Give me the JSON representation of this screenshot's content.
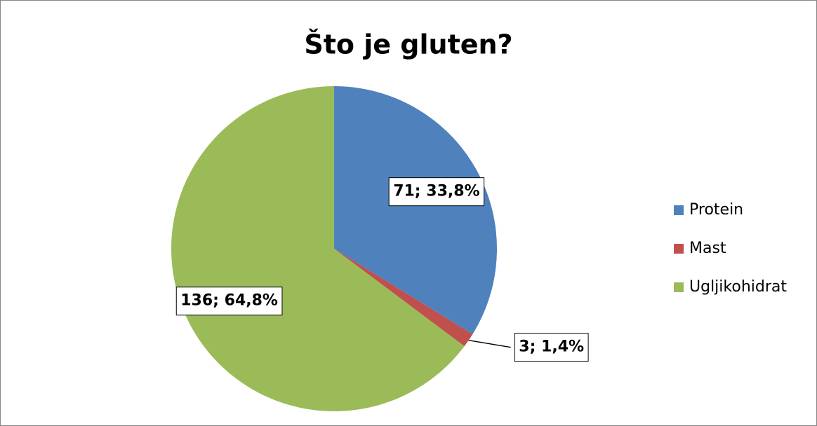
{
  "chart_data": {
    "type": "pie",
    "title": "Što je gluten?",
    "categories": [
      "Protein",
      "Mast",
      "Ugljikohidrat"
    ],
    "values": [
      71,
      3,
      136
    ],
    "value_labels": [
      "71; 33,8%",
      "3; 1,4%",
      "136; 64,8%"
    ],
    "colors": [
      "#4f81bd",
      "#c0504d",
      "#9bbb59"
    ],
    "legend": "right"
  }
}
